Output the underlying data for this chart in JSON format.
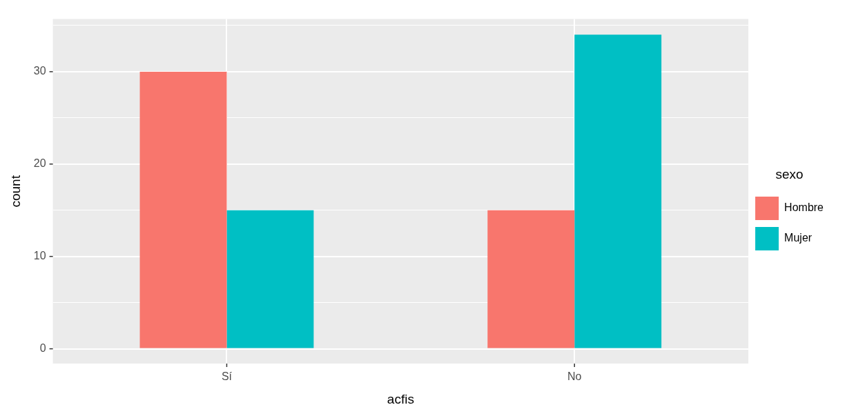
{
  "chart_data": {
    "type": "bar",
    "xlabel": "acfis",
    "ylabel": "count",
    "legend_title": "sexo",
    "categories": [
      "Sí",
      "No"
    ],
    "series": [
      {
        "name": "Hombre",
        "color": "#f8766d",
        "values": [
          30,
          15
        ]
      },
      {
        "name": "Mujer",
        "color": "#00bfc4",
        "values": [
          15,
          34
        ]
      }
    ],
    "ylim": [
      -1.6,
      35.7
    ],
    "yticks": [
      0,
      {
        "value": 5,
        "label": null
      },
      10,
      {
        "value": 15,
        "label": null
      },
      20,
      {
        "value": 25,
        "label": null
      },
      30,
      {
        "value": 35,
        "label": null
      }
    ],
    "grid": true,
    "legend": "right"
  }
}
